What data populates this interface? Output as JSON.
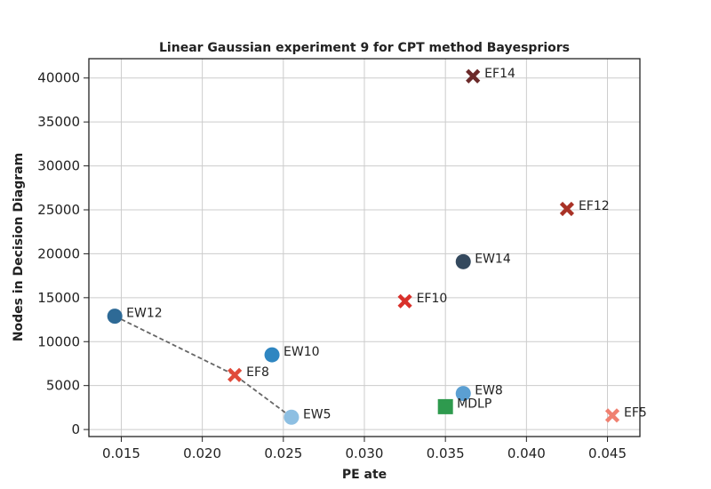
{
  "chart_data": {
    "type": "scatter",
    "title": "Linear Gaussian experiment 9 for CPT method Bayespriors",
    "xlabel": "PE ate",
    "ylabel": "Nodes in Decision Diagram",
    "xlim": [
      0.013,
      0.047
    ],
    "ylim": [
      -800,
      42200
    ],
    "xticks": [
      "0.015",
      "0.020",
      "0.025",
      "0.030",
      "0.035",
      "0.040",
      "0.045"
    ],
    "yticks": [
      "0",
      "5000",
      "10000",
      "15000",
      "20000",
      "25000",
      "30000",
      "35000",
      "40000"
    ],
    "grid": true,
    "points": [
      {
        "label": "EF14",
        "x": 0.0367,
        "y": 40200,
        "marker": "x",
        "color": "#6b2a2a"
      },
      {
        "label": "EF12",
        "x": 0.0425,
        "y": 25100,
        "marker": "x",
        "color": "#a93226"
      },
      {
        "label": "EW14",
        "x": 0.0361,
        "y": 19100,
        "marker": "circle",
        "color": "#34495e"
      },
      {
        "label": "EF10",
        "x": 0.0325,
        "y": 14600,
        "marker": "x",
        "color": "#d9302a"
      },
      {
        "label": "EW12",
        "x": 0.0146,
        "y": 12900,
        "marker": "circle",
        "color": "#2e6a96"
      },
      {
        "label": "EW10",
        "x": 0.0243,
        "y": 8500,
        "marker": "circle",
        "color": "#2f86c1"
      },
      {
        "label": "EF8",
        "x": 0.022,
        "y": 6200,
        "marker": "x",
        "color": "#e04a3a"
      },
      {
        "label": "EW8",
        "x": 0.0361,
        "y": 4100,
        "marker": "circle",
        "color": "#5b9fd2"
      },
      {
        "label": "MDLP",
        "x": 0.035,
        "y": 2600,
        "marker": "square",
        "color": "#2e9a4e"
      },
      {
        "label": "EF5",
        "x": 0.0453,
        "y": 1600,
        "marker": "x",
        "color": "#f08070"
      },
      {
        "label": "EW5",
        "x": 0.0255,
        "y": 1400,
        "marker": "circle",
        "color": "#8dbfe2"
      }
    ],
    "pareto_line": [
      "EW12",
      "EF8",
      "EW5"
    ]
  }
}
